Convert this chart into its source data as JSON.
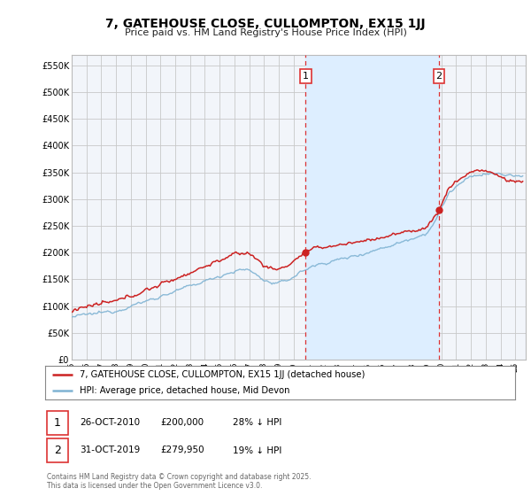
{
  "title": "7, GATEHOUSE CLOSE, CULLOMPTON, EX15 1JJ",
  "subtitle": "Price paid vs. HM Land Registry's House Price Index (HPI)",
  "ylabel_ticks": [
    "£0",
    "£50K",
    "£100K",
    "£150K",
    "£200K",
    "£250K",
    "£300K",
    "£350K",
    "£400K",
    "£450K",
    "£500K",
    "£550K"
  ],
  "ytick_vals": [
    0,
    50000,
    100000,
    150000,
    200000,
    250000,
    300000,
    350000,
    400000,
    450000,
    500000,
    550000
  ],
  "ylim": [
    0,
    570000
  ],
  "xlim_start": 1995.0,
  "xlim_end": 2025.7,
  "transaction1_x": 2010.82,
  "transaction1_y": 200000,
  "transaction1_label": "1",
  "transaction2_x": 2019.83,
  "transaction2_y": 279950,
  "transaction2_label": "2",
  "vline1_x": 2010.82,
  "vline2_x": 2019.83,
  "legend_line1": "7, GATEHOUSE CLOSE, CULLOMPTON, EX15 1JJ (detached house)",
  "legend_line2": "HPI: Average price, detached house, Mid Devon",
  "annot1_date": "26-OCT-2010",
  "annot1_price": "£200,000",
  "annot1_hpi": "28% ↓ HPI",
  "annot2_date": "31-OCT-2019",
  "annot2_price": "£279,950",
  "annot2_hpi": "19% ↓ HPI",
  "footer": "Contains HM Land Registry data © Crown copyright and database right 2025.\nThis data is licensed under the Open Government Licence v3.0.",
  "hpi_color": "#7fb3d3",
  "property_color": "#cc2222",
  "vline_color": "#dd3333",
  "fill_color": "#ddeeff",
  "grid_color": "#c8c8c8",
  "background_color": "#ffffff",
  "plot_bg_color": "#f2f5fa"
}
